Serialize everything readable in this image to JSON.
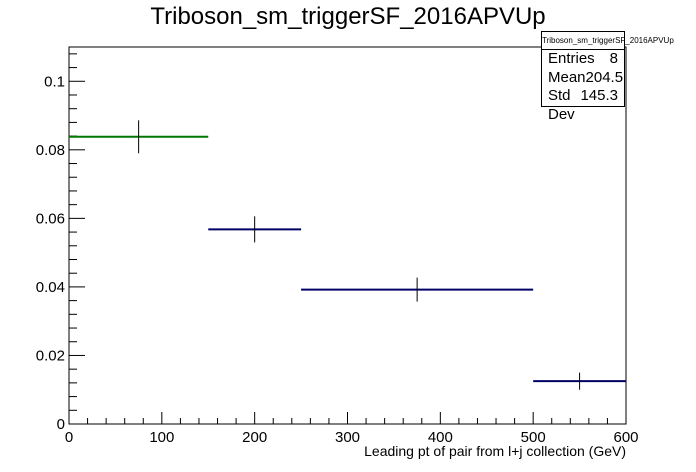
{
  "chart_data": {
    "type": "histogram",
    "title": "Triboson_sm_triggerSF_2016APVUp",
    "xlabel": "Leading pt of pair from l+j collection (GeV)",
    "ylabel": "",
    "xlim": [
      0,
      600
    ],
    "ylim": [
      0,
      0.11
    ],
    "x_ticks": [
      0,
      100,
      200,
      300,
      400,
      500,
      600
    ],
    "y_ticks": [
      0,
      0.02,
      0.04,
      0.06,
      0.08,
      0.1
    ],
    "x_tick_labels": [
      "0",
      "100",
      "200",
      "300",
      "400",
      "500",
      "600"
    ],
    "y_tick_labels": [
      "0",
      "0.02",
      "0.04",
      "0.06",
      "0.08",
      "0.1"
    ],
    "bins": [
      {
        "x_low": 0,
        "x_high": 150,
        "x_center": 75,
        "value": 0.0838,
        "error": 0.0048,
        "color": "#007700"
      },
      {
        "x_low": 150,
        "x_high": 250,
        "x_center": 200,
        "value": 0.0568,
        "error": 0.0038,
        "color": "#000066"
      },
      {
        "x_low": 250,
        "x_high": 500,
        "x_center": 375,
        "value": 0.0392,
        "error": 0.0035,
        "color": "#000066"
      },
      {
        "x_low": 500,
        "x_high": 600,
        "x_center": 550,
        "value": 0.0125,
        "error": 0.0025,
        "color": "#000066"
      }
    ],
    "stats": {
      "title": "Triboson_sm_triggerSF_2016APVUp",
      "entries_label": "Entries",
      "entries": "8",
      "mean_label": "Mean",
      "mean": "204.5",
      "stddev_label": "Std Dev",
      "stddev": "145.3"
    },
    "grid": false,
    "legend": "top-right"
  }
}
